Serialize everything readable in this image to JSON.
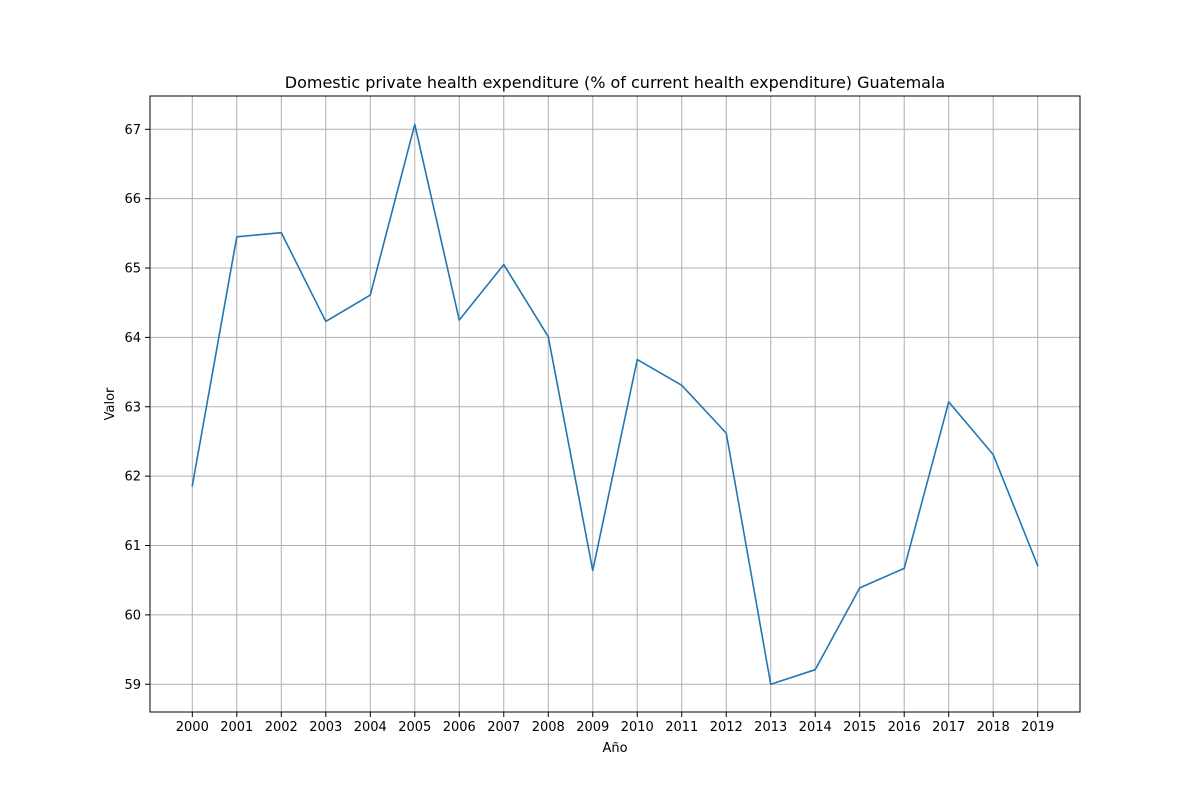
{
  "chart_data": {
    "type": "line",
    "title": "Domestic private health expenditure (% of current health expenditure) Guatemala",
    "xlabel": "Año",
    "ylabel": "Valor",
    "x": [
      "2000",
      "2001",
      "2002",
      "2003",
      "2004",
      "2005",
      "2006",
      "2007",
      "2008",
      "2009",
      "2010",
      "2011",
      "2012",
      "2013",
      "2014",
      "2015",
      "2016",
      "2017",
      "2018",
      "2019"
    ],
    "series": [
      {
        "values": [
          61.86,
          65.45,
          65.51,
          64.23,
          64.61,
          67.07,
          64.25,
          65.05,
          64.01,
          60.64,
          63.68,
          63.31,
          62.62,
          59.0,
          59.21,
          60.39,
          60.67,
          63.07,
          62.31,
          60.71
        ]
      }
    ],
    "yticks": [
      59,
      60,
      61,
      62,
      63,
      64,
      65,
      66,
      67
    ],
    "ylim": [
      58.6,
      67.48
    ],
    "grid": true,
    "line_color": "#1f77b4"
  }
}
